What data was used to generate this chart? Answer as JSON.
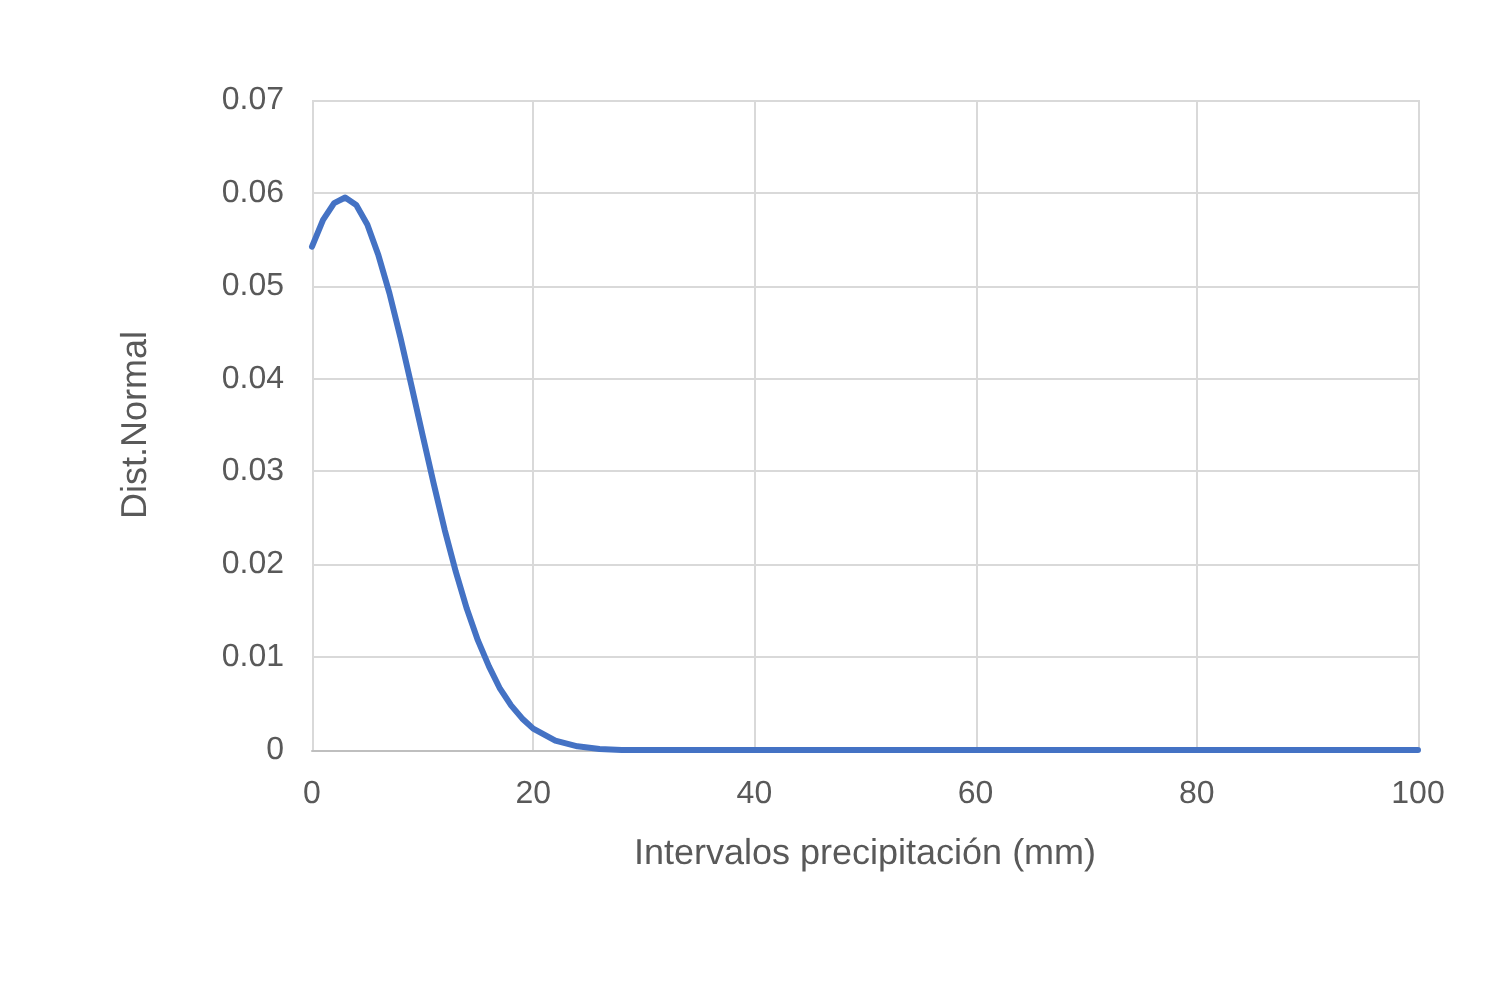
{
  "chart_data": {
    "type": "line",
    "xlabel": "Intervalos precipitación (mm)",
    "ylabel": "Dist.Normal",
    "x": [
      0,
      1,
      2,
      3,
      4,
      5,
      6,
      7,
      8,
      9,
      10,
      11,
      12,
      13,
      14,
      15,
      16,
      17,
      18,
      19,
      20,
      22,
      24,
      26,
      28,
      30,
      40,
      50,
      60,
      70,
      80,
      90,
      100
    ],
    "series": [
      {
        "color": "#4472c4",
        "values": [
          0.0542,
          0.0571,
          0.0589,
          0.0595,
          0.0587,
          0.0566,
          0.0533,
          0.0492,
          0.0444,
          0.0392,
          0.0339,
          0.0287,
          0.0237,
          0.0192,
          0.0152,
          0.0118,
          0.009,
          0.0066,
          0.0048,
          0.0034,
          0.0023,
          0.001,
          0.0004,
          0.0001,
          0,
          0,
          0,
          0,
          0,
          0,
          0,
          0,
          0
        ]
      }
    ],
    "xlim": [
      0,
      100
    ],
    "xticks": [
      0,
      20,
      40,
      60,
      80,
      100
    ],
    "ylim": [
      0,
      0.07
    ],
    "yticks": [
      0,
      0.01,
      0.02,
      0.03,
      0.04,
      0.05,
      0.06,
      0.07
    ],
    "grid": true,
    "marker": "none",
    "line_style": "solid"
  }
}
